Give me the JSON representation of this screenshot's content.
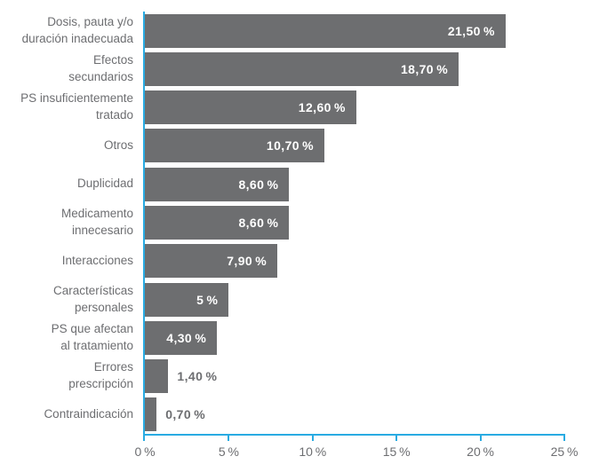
{
  "chart_data": {
    "type": "bar",
    "orientation": "horizontal",
    "title": "",
    "xlabel": "",
    "ylabel": "",
    "xlim": [
      0,
      25
    ],
    "grid": false,
    "legend": false,
    "colors": {
      "bar": "#6D6E70",
      "axis": "#29ABE2",
      "text": "#6D6E71",
      "value_label_inside": "#FFFFFF",
      "value_label_outside": "#6D6E71"
    },
    "categories": [
      "Dosis, pauta y/o duración inadecuada",
      "Efectos secundarios",
      "PS insuficientemente tratado",
      "Otros",
      "Duplicidad",
      "Medicamento innecesario",
      "Interacciones",
      "Características personales",
      "PS que afectan al tratamiento",
      "Errores prescripción",
      "Contraindicación"
    ],
    "values": [
      21.5,
      18.7,
      12.6,
      10.7,
      8.6,
      8.6,
      7.9,
      5,
      4.3,
      1.4,
      0.7
    ],
    "points": [
      {
        "category": "Dosis, pauta y/o duración inadecuada",
        "display": "Dosis, pauta y/o\nduración inadecuada",
        "value": 21.5,
        "value_label": "21,50 %",
        "label_inside": true
      },
      {
        "category": "Efectos secundarios",
        "display": "Efectos\nsecundarios",
        "value": 18.7,
        "value_label": "18,70 %",
        "label_inside": true
      },
      {
        "category": "PS insuficientemente tratado",
        "display": "PS insuficientemente\ntratado",
        "value": 12.6,
        "value_label": "12,60 %",
        "label_inside": true
      },
      {
        "category": "Otros",
        "display": "Otros",
        "value": 10.7,
        "value_label": "10,70 %",
        "label_inside": true
      },
      {
        "category": "Duplicidad",
        "display": "Duplicidad",
        "value": 8.6,
        "value_label": "8,60 %",
        "label_inside": true
      },
      {
        "category": "Medicamento innecesario",
        "display": "Medicamento\ninnecesario",
        "value": 8.6,
        "value_label": "8,60 %",
        "label_inside": true
      },
      {
        "category": "Interacciones",
        "display": "Interacciones",
        "value": 7.9,
        "value_label": "7,90 %",
        "label_inside": true
      },
      {
        "category": "Características personales",
        "display": "Características\npersonales",
        "value": 5,
        "value_label": "5 %",
        "label_inside": true
      },
      {
        "category": "PS que afectan al tratamiento",
        "display": "PS que afectan\nal tratamiento",
        "value": 4.3,
        "value_label": "4,30 %",
        "label_inside": true
      },
      {
        "category": "Errores prescripción",
        "display": "Errores\nprescripción",
        "value": 1.4,
        "value_label": "1,40 %",
        "label_inside": false
      },
      {
        "category": "Contraindicación",
        "display": "Contraindicación",
        "value": 0.7,
        "value_label": "0,70 %",
        "label_inside": false
      }
    ],
    "x_ticks": [
      {
        "value": 0,
        "label": "0 %"
      },
      {
        "value": 5,
        "label": "5 %"
      },
      {
        "value": 10,
        "label": "10 %"
      },
      {
        "value": 15,
        "label": "15 %"
      },
      {
        "value": 20,
        "label": "20 %"
      },
      {
        "value": 25,
        "label": "25 %"
      }
    ]
  }
}
